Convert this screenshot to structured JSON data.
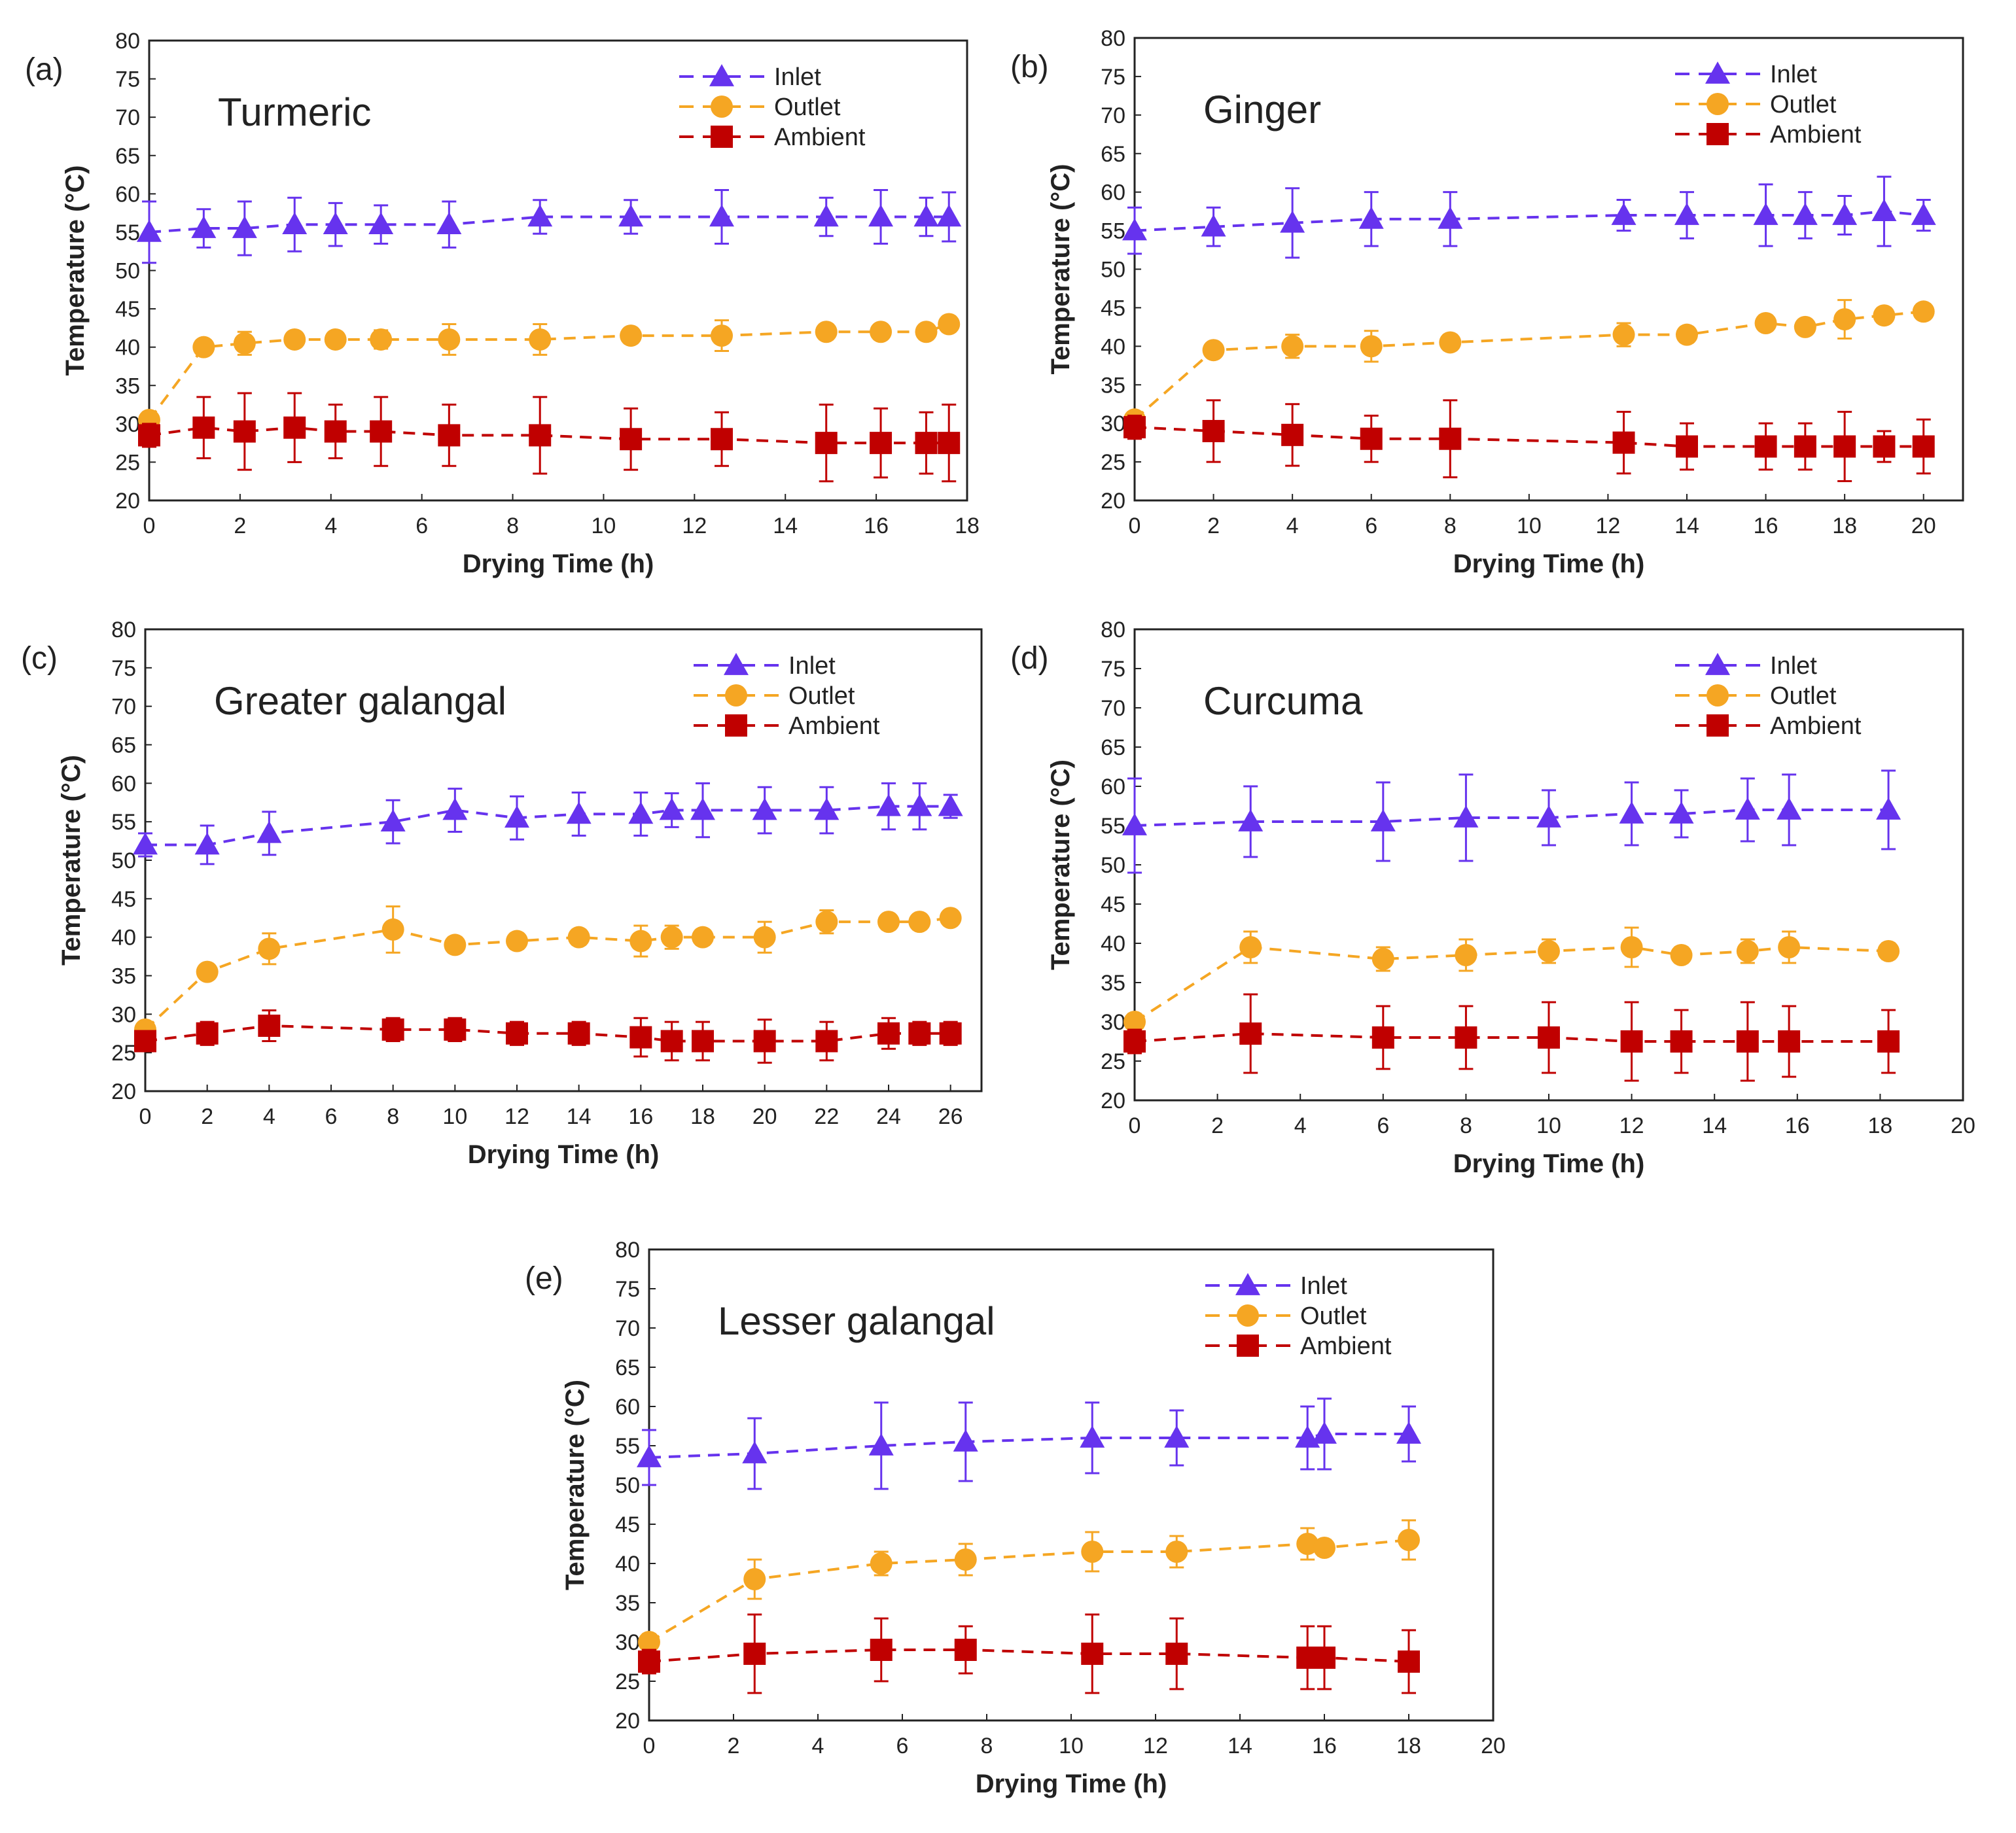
{
  "colors": {
    "inlet": "#6633ee",
    "outlet": "#f5a623",
    "ambient": "#c00000",
    "axis": "#222222"
  },
  "chart_data": [
    {
      "type": "line",
      "panel": "(a)",
      "title": "Turmeric",
      "xlabel": "Drying  Time (h)",
      "ylabel": "Temperature (°C)",
      "xlim": [
        0,
        18
      ],
      "xticks": [
        0,
        2,
        4,
        6,
        8,
        10,
        12,
        14,
        16,
        18
      ],
      "ylim": [
        20,
        80
      ],
      "yticks": [
        20,
        25,
        30,
        35,
        40,
        45,
        50,
        55,
        60,
        65,
        70,
        75,
        80
      ],
      "legend": "top-right",
      "series": [
        {
          "name": "Inlet",
          "marker": "triangle",
          "color": "inlet",
          "x": [
            0,
            1.2,
            2.1,
            3.2,
            4.1,
            5.1,
            6.6,
            8.6,
            10.6,
            12.6,
            14.9,
            16.1,
            17.1,
            17.6
          ],
          "y": [
            55,
            55.5,
            55.5,
            56,
            56,
            56,
            56,
            57,
            57,
            57,
            57,
            57,
            57,
            57
          ],
          "err": [
            4,
            2.5,
            3.5,
            3.5,
            2.8,
            2.5,
            3,
            2.2,
            2.2,
            3.5,
            2.5,
            3.5,
            2.5,
            3.2
          ]
        },
        {
          "name": "Outlet",
          "marker": "circle",
          "color": "outlet",
          "x": [
            0,
            1.2,
            2.1,
            3.2,
            4.1,
            5.1,
            6.6,
            8.6,
            10.6,
            12.6,
            14.9,
            16.1,
            17.1,
            17.6
          ],
          "y": [
            30.5,
            40,
            40.5,
            41,
            41,
            41,
            41,
            41,
            41.5,
            41.5,
            42,
            42,
            42,
            43
          ],
          "err": [
            1,
            0.8,
            1.5,
            1,
            1,
            1.2,
            2,
            2,
            1,
            2,
            1,
            1,
            1,
            1
          ]
        },
        {
          "name": "Ambient",
          "marker": "square",
          "color": "ambient",
          "x": [
            0,
            1.2,
            2.1,
            3.2,
            4.1,
            5.1,
            6.6,
            8.6,
            10.6,
            12.6,
            14.9,
            16.1,
            17.1,
            17.6
          ],
          "y": [
            28.5,
            29.5,
            29,
            29.5,
            29,
            29,
            28.5,
            28.5,
            28,
            28,
            27.5,
            27.5,
            27.5,
            27.5
          ],
          "err": [
            1.5,
            4,
            5,
            4.5,
            3.5,
            4.5,
            4,
            5,
            4,
            3.5,
            5,
            4.5,
            4,
            5
          ]
        }
      ]
    },
    {
      "type": "line",
      "panel": "(b)",
      "title": "Ginger",
      "xlabel": "Drying  Time (h)",
      "ylabel": "Temperature (°C)",
      "xlim": [
        0,
        21
      ],
      "xticks": [
        0,
        2,
        4,
        6,
        8,
        10,
        12,
        14,
        16,
        18,
        20
      ],
      "ylim": [
        20,
        80
      ],
      "yticks": [
        20,
        25,
        30,
        35,
        40,
        45,
        50,
        55,
        60,
        65,
        70,
        75,
        80
      ],
      "legend": "top-right",
      "series": [
        {
          "name": "Inlet",
          "marker": "triangle",
          "color": "inlet",
          "x": [
            0,
            2,
            4,
            6,
            8,
            12.4,
            14,
            16,
            17,
            18,
            19,
            20
          ],
          "y": [
            55,
            55.5,
            56,
            56.5,
            56.5,
            57,
            57,
            57,
            57,
            57,
            57.5,
            57
          ],
          "err": [
            3,
            2.5,
            4.5,
            3.5,
            3.5,
            2,
            3,
            4,
            3,
            2.5,
            4.5,
            2
          ]
        },
        {
          "name": "Outlet",
          "marker": "circle",
          "color": "outlet",
          "x": [
            0,
            2,
            4,
            6,
            8,
            12.4,
            14,
            16,
            17,
            18,
            19,
            20
          ],
          "y": [
            30.5,
            39.5,
            40,
            40,
            40.5,
            41.5,
            41.5,
            43,
            42.5,
            43.5,
            44,
            44.5
          ],
          "err": [
            1,
            0.8,
            1.5,
            2,
            1,
            1.5,
            1,
            1,
            1,
            2.5,
            1,
            1
          ]
        },
        {
          "name": "Ambient",
          "marker": "square",
          "color": "ambient",
          "x": [
            0,
            2,
            4,
            6,
            8,
            12.4,
            14,
            16,
            17,
            18,
            19,
            20
          ],
          "y": [
            29.5,
            29,
            28.5,
            28,
            28,
            27.5,
            27,
            27,
            27,
            27,
            27,
            27
          ],
          "err": [
            1.5,
            4,
            4,
            3,
            5,
            4,
            3,
            3,
            3,
            4.5,
            2,
            3.5
          ]
        }
      ]
    },
    {
      "type": "line",
      "panel": "(c)",
      "title": "Greater galangal",
      "xlabel": "Drying  Time (h)",
      "ylabel": "Temperature (°C)",
      "xlim": [
        0,
        27
      ],
      "xticks": [
        0,
        2,
        4,
        6,
        8,
        10,
        12,
        14,
        16,
        18,
        20,
        22,
        24,
        26
      ],
      "ylim": [
        20,
        80
      ],
      "yticks": [
        20,
        25,
        30,
        35,
        40,
        45,
        50,
        55,
        60,
        65,
        70,
        75,
        80
      ],
      "legend": "top-right",
      "series": [
        {
          "name": "Inlet",
          "marker": "triangle",
          "color": "inlet",
          "x": [
            0,
            2,
            4,
            8,
            10,
            12,
            14,
            16,
            17,
            18,
            20,
            22,
            24,
            25,
            26
          ],
          "y": [
            52,
            52,
            53.5,
            55,
            56.5,
            55.5,
            56,
            56,
            56.5,
            56.5,
            56.5,
            56.5,
            57,
            57,
            57
          ],
          "err": [
            1.5,
            2.5,
            2.8,
            2.8,
            2.8,
            2.8,
            2.8,
            2.8,
            2.2,
            3.5,
            3,
            3,
            3,
            3,
            1.5
          ]
        },
        {
          "name": "Outlet",
          "marker": "circle",
          "color": "outlet",
          "x": [
            0,
            2,
            4,
            8,
            10,
            12,
            14,
            16,
            17,
            18,
            20,
            22,
            24,
            25,
            26
          ],
          "y": [
            28,
            35.5,
            38.5,
            41,
            39,
            39.5,
            40,
            39.5,
            40,
            40,
            40,
            42,
            42,
            42,
            42.5
          ],
          "err": [
            1,
            0.8,
            2,
            3,
            1,
            1,
            1,
            2,
            1.5,
            1,
            2,
            1.5,
            1,
            1,
            1
          ]
        },
        {
          "name": "Ambient",
          "marker": "square",
          "color": "ambient",
          "x": [
            0,
            2,
            4,
            8,
            10,
            12,
            14,
            16,
            17,
            18,
            20,
            22,
            24,
            25,
            26
          ],
          "y": [
            26.5,
            27.5,
            28.5,
            28,
            28,
            27.5,
            27.5,
            27,
            26.5,
            26.5,
            26.5,
            26.5,
            27.5,
            27.5,
            27.5
          ],
          "err": [
            1,
            1.5,
            2,
            1.5,
            1.5,
            1.5,
            1.5,
            2.5,
            2.5,
            2.5,
            2.8,
            2.5,
            2,
            1.5,
            1.5
          ]
        }
      ]
    },
    {
      "type": "line",
      "panel": "(d)",
      "title": "Curcuma",
      "xlabel": "Drying  Time (h)",
      "ylabel": "Temperature (°C)",
      "xlim": [
        0,
        20
      ],
      "xticks": [
        0,
        2,
        4,
        6,
        8,
        10,
        12,
        14,
        16,
        18,
        20
      ],
      "ylim": [
        20,
        80
      ],
      "yticks": [
        20,
        25,
        30,
        35,
        40,
        45,
        50,
        55,
        60,
        65,
        70,
        75,
        80
      ],
      "legend": "top-right",
      "series": [
        {
          "name": "Inlet",
          "marker": "triangle",
          "color": "inlet",
          "x": [
            0,
            2.8,
            6,
            8,
            10,
            12,
            13.2,
            14.8,
            15.8,
            18.2
          ],
          "y": [
            55,
            55.5,
            55.5,
            56,
            56,
            56.5,
            56.5,
            57,
            57,
            57
          ],
          "err": [
            6,
            4.5,
            5,
            5.5,
            3.5,
            4,
            3,
            4,
            4.5,
            5
          ]
        },
        {
          "name": "Outlet",
          "marker": "circle",
          "color": "outlet",
          "x": [
            0,
            2.8,
            6,
            8,
            10,
            12,
            13.2,
            14.8,
            15.8,
            18.2
          ],
          "y": [
            30,
            39.5,
            38,
            38.5,
            39,
            39.5,
            38.5,
            39,
            39.5,
            39
          ],
          "err": [
            1,
            2,
            1.5,
            2,
            1.5,
            2.5,
            1,
            1.5,
            2,
            1
          ]
        },
        {
          "name": "Ambient",
          "marker": "square",
          "color": "ambient",
          "x": [
            0,
            2.8,
            6,
            8,
            10,
            12,
            13.2,
            14.8,
            15.8,
            18.2
          ],
          "y": [
            27.5,
            28.5,
            28,
            28,
            28,
            27.5,
            27.5,
            27.5,
            27.5,
            27.5
          ],
          "err": [
            1.5,
            5,
            4,
            4,
            4.5,
            5,
            4,
            5,
            4.5,
            4
          ]
        }
      ]
    },
    {
      "type": "line",
      "panel": "(e)",
      "title": "Lesser galangal",
      "xlabel": "Drying  Time (h)",
      "ylabel": "Temperature (°C)",
      "xlim": [
        0,
        20
      ],
      "xticks": [
        0,
        2,
        4,
        6,
        8,
        10,
        12,
        14,
        16,
        18,
        20
      ],
      "ylim": [
        20,
        80
      ],
      "yticks": [
        20,
        25,
        30,
        35,
        40,
        45,
        50,
        55,
        60,
        65,
        70,
        75,
        80
      ],
      "legend": "top-right",
      "series": [
        {
          "name": "Inlet",
          "marker": "triangle",
          "color": "inlet",
          "x": [
            0,
            2.5,
            5.5,
            7.5,
            10.5,
            12.5,
            15.6,
            16,
            18
          ],
          "y": [
            53.5,
            54,
            55,
            55.5,
            56,
            56,
            56,
            56.5,
            56.5
          ],
          "err": [
            3.5,
            4.5,
            5.5,
            5,
            4.5,
            3.5,
            4,
            4.5,
            3.5
          ]
        },
        {
          "name": "Outlet",
          "marker": "circle",
          "color": "outlet",
          "x": [
            0,
            2.5,
            5.5,
            7.5,
            10.5,
            12.5,
            15.6,
            16,
            18
          ],
          "y": [
            30,
            38,
            40,
            40.5,
            41.5,
            41.5,
            42.5,
            42,
            43
          ],
          "err": [
            1,
            2.5,
            1.5,
            2,
            2.5,
            2,
            2,
            1,
            2.5
          ]
        },
        {
          "name": "Ambient",
          "marker": "square",
          "color": "ambient",
          "x": [
            0,
            2.5,
            5.5,
            7.5,
            10.5,
            12.5,
            15.6,
            16,
            18
          ],
          "y": [
            27.5,
            28.5,
            29,
            29,
            28.5,
            28.5,
            28,
            28,
            27.5
          ],
          "err": [
            1.5,
            5,
            4,
            3,
            5,
            4.5,
            4,
            4,
            4
          ]
        }
      ]
    }
  ]
}
